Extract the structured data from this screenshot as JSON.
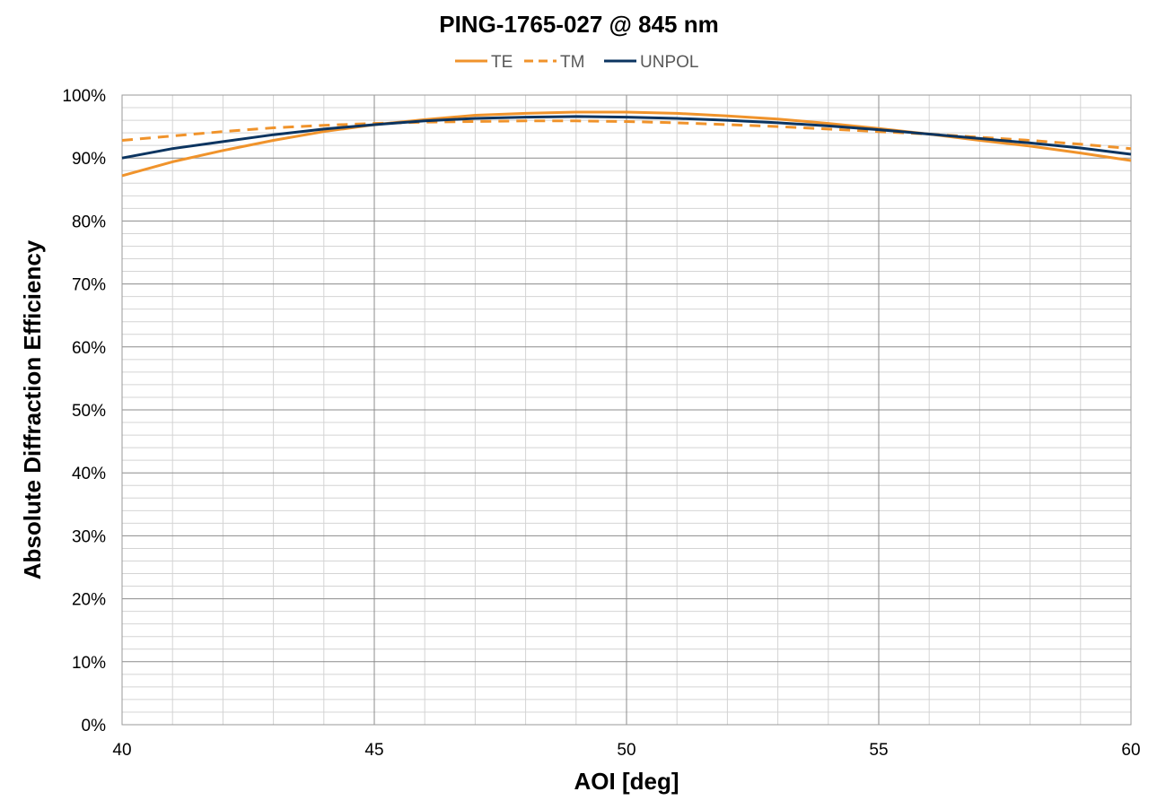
{
  "chart_data": {
    "type": "line",
    "title": "PING-1765-027 @ 845 nm",
    "xlabel": "AOI [deg]",
    "ylabel": "Absolute Diffraction Efficiency",
    "xlim": [
      40,
      60
    ],
    "ylim": [
      0,
      100
    ],
    "x_ticks": [
      "40",
      "45",
      "50",
      "55",
      "60"
    ],
    "y_ticks": [
      "0%",
      "10%",
      "20%",
      "30%",
      "40%",
      "50%",
      "60%",
      "70%",
      "80%",
      "90%",
      "100%"
    ],
    "grid": true,
    "legend_position": "top",
    "x": [
      40,
      41,
      42,
      43,
      44,
      45,
      46,
      47,
      48,
      49,
      50,
      51,
      52,
      53,
      54,
      55,
      56,
      57,
      58,
      59,
      60
    ],
    "series": [
      {
        "name": "TE",
        "color": "#F0932B",
        "dash": "solid",
        "values": [
          87.2,
          89.4,
          91.2,
          92.8,
          94.2,
          95.3,
          96.1,
          96.8,
          97.1,
          97.3,
          97.3,
          97.1,
          96.7,
          96.2,
          95.5,
          94.7,
          93.8,
          92.8,
          91.9,
          90.8,
          89.6
        ]
      },
      {
        "name": "TM",
        "color": "#F0932B",
        "dash": "dashed",
        "values": [
          92.8,
          93.5,
          94.2,
          94.8,
          95.2,
          95.5,
          95.7,
          95.8,
          95.9,
          95.9,
          95.8,
          95.6,
          95.3,
          95.0,
          94.6,
          94.2,
          93.8,
          93.3,
          92.8,
          92.2,
          91.5
        ]
      },
      {
        "name": "UNPOL",
        "color": "#0B3460",
        "dash": "solid",
        "values": [
          90.0,
          91.5,
          92.6,
          93.7,
          94.6,
          95.3,
          95.9,
          96.3,
          96.5,
          96.6,
          96.5,
          96.3,
          96.0,
          95.6,
          95.1,
          94.5,
          93.8,
          93.1,
          92.4,
          91.6,
          90.6
        ]
      }
    ]
  }
}
